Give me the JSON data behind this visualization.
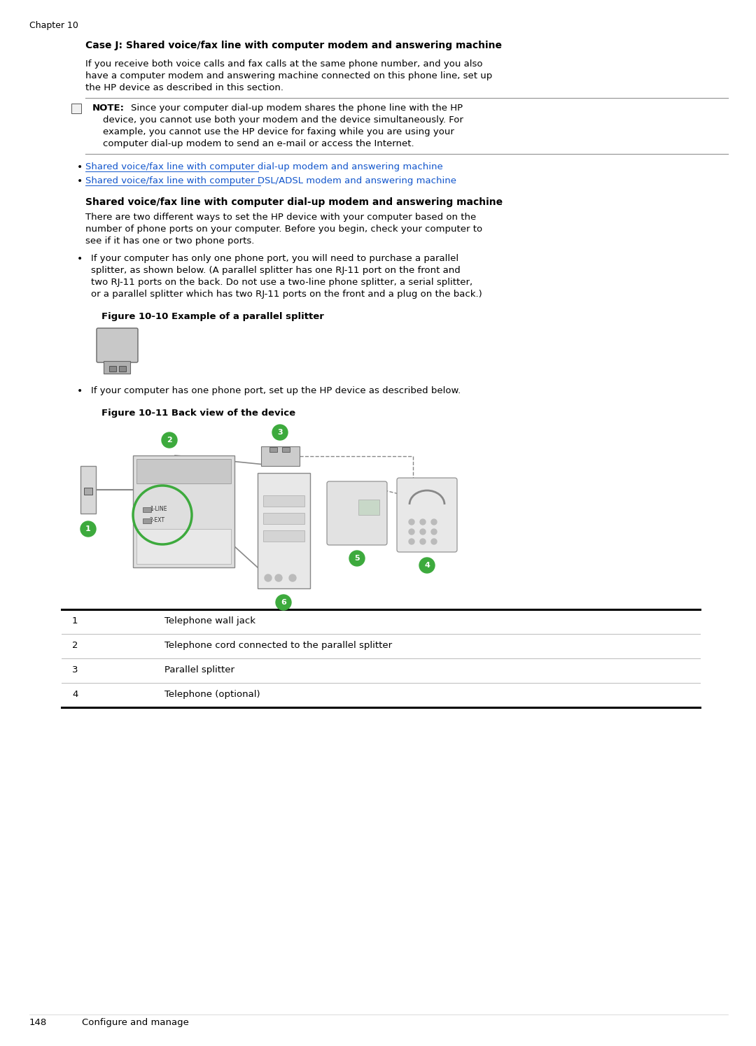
{
  "bg_color": "#ffffff",
  "chapter_label": "Chapter 10",
  "section_title": "Case J: Shared voice/fax line with computer modem and answering machine",
  "para1_lines": [
    "If you receive both voice calls and fax calls at the same phone number, and you also",
    "have a computer modem and answering machine connected on this phone line, set up",
    "the HP device as described in this section."
  ],
  "note_label": "NOTE:",
  "note_line1": "Since your computer dial-up modem shares the phone line with the HP",
  "note_lines": [
    "device, you cannot use both your modem and the device simultaneously. For",
    "example, you cannot use the HP device for faxing while you are using your",
    "computer dial-up modem to send an e-mail or access the Internet."
  ],
  "link1": "Shared voice/fax line with computer dial-up modem and answering machine",
  "link2": "Shared voice/fax line with computer DSL/ADSL modem and answering machine",
  "subsection_title": "Shared voice/fax line with computer dial-up modem and answering machine",
  "para2_lines": [
    "There are two different ways to set the HP device with your computer based on the",
    "number of phone ports on your computer. Before you begin, check your computer to",
    "see if it has one or two phone ports."
  ],
  "bullet1_lines": [
    "If your computer has only one phone port, you will need to purchase a parallel",
    "splitter, as shown below. (A parallel splitter has one RJ-11 port on the front and",
    "two RJ-11 ports on the back. Do not use a two-line phone splitter, a serial splitter,",
    "or a parallel splitter which has two RJ-11 ports on the front and a plug on the back.)"
  ],
  "fig1010_label": "Figure 10-10 Example of a parallel splitter",
  "bullet2_text": "If your computer has one phone port, set up the HP device as described below.",
  "fig1011_label": "Figure 10-11 Back view of the device",
  "table_rows": [
    [
      "1",
      "Telephone wall jack"
    ],
    [
      "2",
      "Telephone cord connected to the parallel splitter"
    ],
    [
      "3",
      "Parallel splitter"
    ],
    [
      "4",
      "Telephone (optional)"
    ]
  ],
  "footer_page": "148",
  "footer_text": "Configure and manage",
  "link_color": "#1155CC",
  "text_color": "#000000",
  "green_color": "#3DAA3D"
}
